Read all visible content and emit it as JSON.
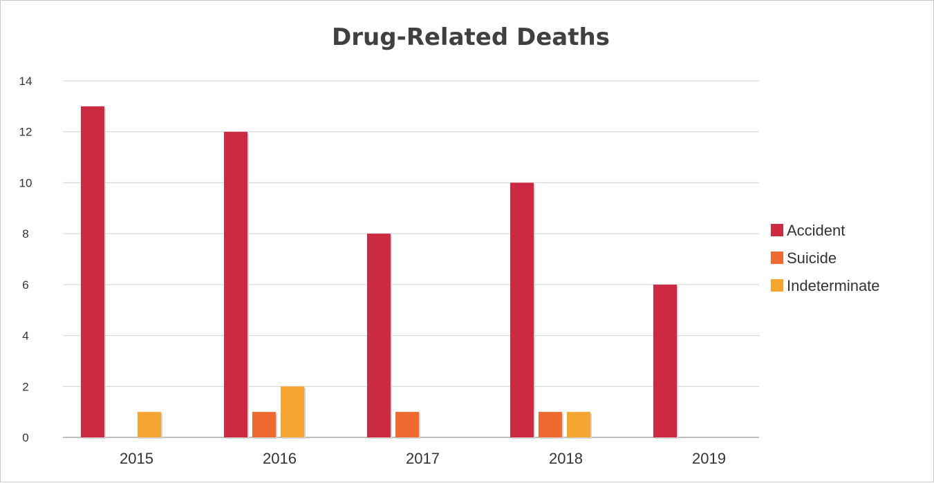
{
  "chart_data": {
    "type": "bar",
    "title": "Drug-Related Deaths",
    "xlabel": "",
    "ylabel": "",
    "categories": [
      "2015",
      "2016",
      "2017",
      "2018",
      "2019"
    ],
    "series": [
      {
        "name": "Accident",
        "values": [
          13,
          12,
          8,
          10,
          6
        ],
        "color": "#cc2a42"
      },
      {
        "name": "Suicide",
        "values": [
          0,
          1,
          1,
          1,
          0
        ],
        "color": "#ee6a30"
      },
      {
        "name": "Indeterminate",
        "values": [
          1,
          2,
          0,
          1,
          0
        ],
        "color": "#f5a630"
      }
    ],
    "ylim": [
      0,
      14
    ],
    "yticks": [
      0,
      2,
      4,
      6,
      8,
      10,
      12,
      14
    ],
    "grid": true,
    "legend_position": "right"
  }
}
